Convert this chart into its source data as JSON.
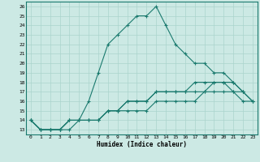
{
  "xlabel": "Humidex (Indice chaleur)",
  "bg_color": "#cce9e4",
  "line_color": "#1a7a6e",
  "grid_color": "#aad4cc",
  "xlim": [
    -0.5,
    23.5
  ],
  "ylim": [
    12.5,
    26.5
  ],
  "xticks": [
    0,
    1,
    2,
    3,
    4,
    5,
    6,
    7,
    8,
    9,
    10,
    11,
    12,
    13,
    14,
    15,
    16,
    17,
    18,
    19,
    20,
    21,
    22,
    23
  ],
  "yticks": [
    13,
    14,
    15,
    16,
    17,
    18,
    19,
    20,
    21,
    22,
    23,
    24,
    25,
    26
  ],
  "series": [
    [
      14,
      13,
      13,
      13,
      13,
      14,
      16,
      19,
      22,
      23,
      24,
      25,
      25,
      26,
      24,
      22,
      21,
      20,
      20,
      19,
      19,
      18,
      17,
      null
    ],
    [
      14,
      13,
      13,
      13,
      14,
      14,
      14,
      14,
      15,
      15,
      16,
      16,
      16,
      17,
      17,
      17,
      17,
      18,
      18,
      18,
      18,
      18,
      17,
      16
    ],
    [
      14,
      13,
      13,
      13,
      14,
      14,
      14,
      14,
      15,
      15,
      16,
      16,
      16,
      17,
      17,
      17,
      17,
      17,
      17,
      18,
      18,
      17,
      17,
      16
    ],
    [
      14,
      13,
      13,
      13,
      14,
      14,
      14,
      14,
      15,
      15,
      15,
      15,
      15,
      16,
      16,
      16,
      16,
      16,
      17,
      17,
      17,
      17,
      16,
      16
    ]
  ]
}
